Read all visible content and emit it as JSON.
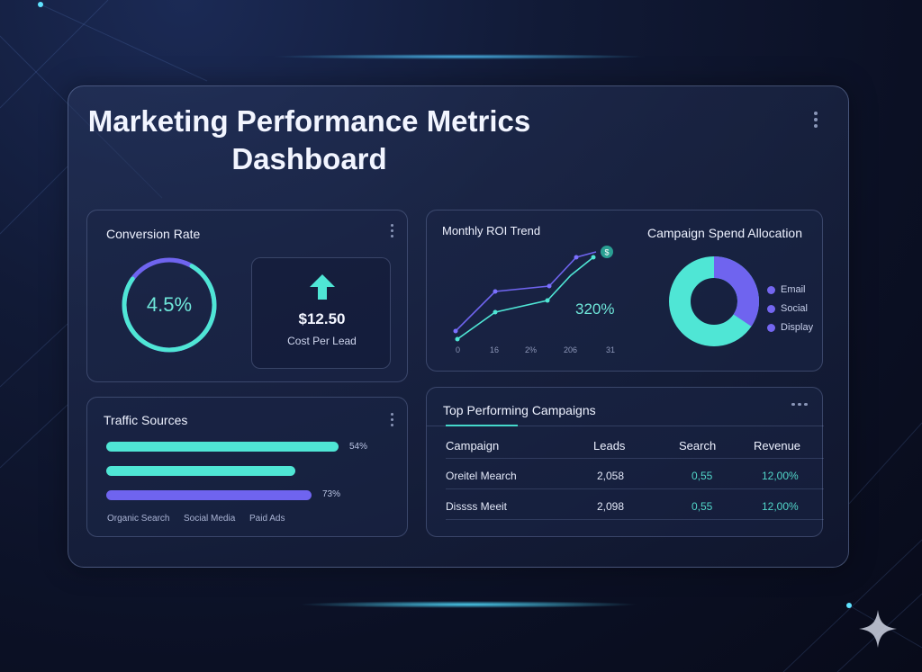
{
  "dashboard": {
    "title": "Marketing Performance Metrics Dashboard"
  },
  "conversion": {
    "title": "Conversion Rate",
    "value": "4.5%",
    "cost_value": "$12.50",
    "cost_label": "Cost Per Lead"
  },
  "traffic": {
    "title": "Traffic Sources",
    "bars": [
      {
        "value_label": "54%",
        "color": "#4fe6d5"
      },
      {
        "value_label": "",
        "color": "#4fe6d5"
      },
      {
        "value_label": "73%",
        "color": "#6f64ef"
      }
    ],
    "categories": [
      "Organic Search",
      "Social Media",
      "Paid Ads"
    ]
  },
  "roi": {
    "title": "Monthly ROI Trend",
    "value": "320%",
    "badge": "$",
    "x_labels": [
      "0",
      "16",
      "2%",
      "206",
      "31"
    ]
  },
  "spend": {
    "title": "Campaign Spend Allocation",
    "legend": [
      "Email",
      "Social",
      "Display"
    ]
  },
  "campaigns": {
    "title": "Top Performing Campaigns",
    "columns": [
      "Campaign",
      "Leads",
      "Search",
      "Revenue"
    ],
    "rows": [
      [
        "Oreitel Mearch",
        "2,058",
        "0,55",
        "12,00%"
      ],
      [
        "Dissss Meeit",
        "2,098",
        "0,55",
        "12,00%"
      ]
    ]
  },
  "colors": {
    "teal": "#4fe6d5",
    "purple": "#6f64ef",
    "background": "#0b1024"
  }
}
